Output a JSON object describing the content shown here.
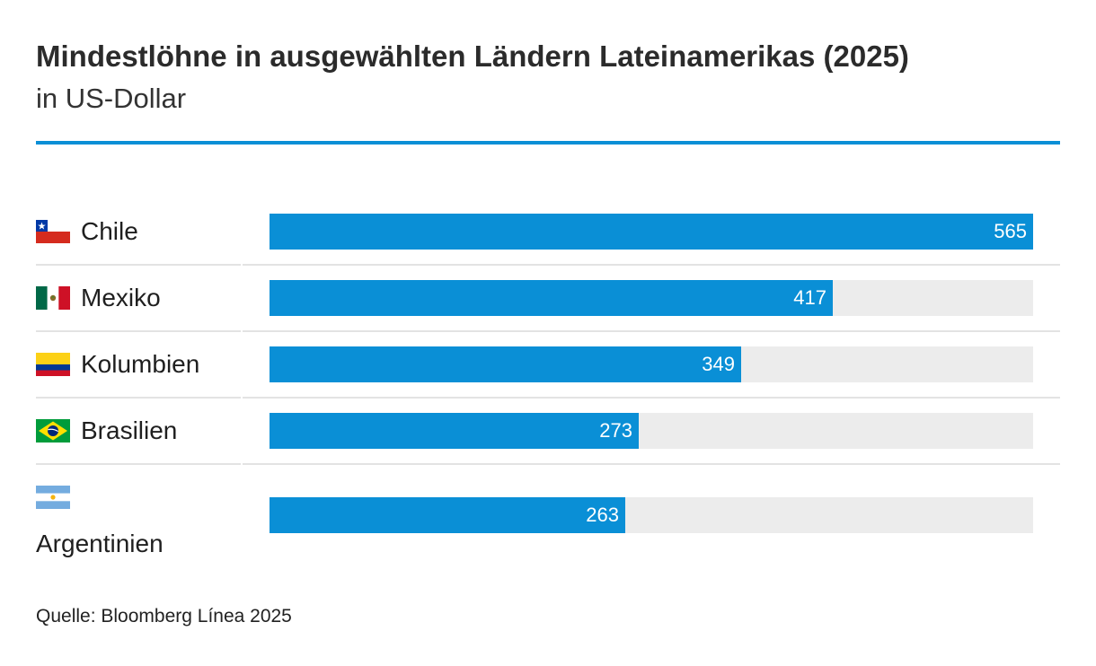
{
  "header": {
    "title": "Mindestlöhne in ausgewählten Ländern Lateinamerikas (2025)",
    "subtitle": "in US-Dollar"
  },
  "footer": {
    "source": "Quelle: Bloomberg Línea 2025"
  },
  "colors": {
    "bar": "#0a8fd6",
    "track": "#ececec",
    "rule": "#0a8fd6"
  },
  "chart_data": {
    "type": "bar",
    "orientation": "horizontal",
    "title": "Mindestlöhne in ausgewählten Ländern Lateinamerikas (2025)",
    "subtitle": "in US-Dollar",
    "categories": [
      "Chile",
      "Mexiko",
      "Kolumbien",
      "Brasilien",
      "Argentinien"
    ],
    "values": [
      565,
      417,
      349,
      273,
      263
    ],
    "value_labels": [
      "565",
      "417",
      "349",
      "273",
      "263"
    ],
    "flags": [
      "chile-flag-icon",
      "mexico-flag-icon",
      "colombia-flag-icon",
      "brazil-flag-icon",
      "argentina-flag-icon"
    ],
    "xlim": [
      0,
      565
    ],
    "grid": false,
    "legend": "none"
  }
}
